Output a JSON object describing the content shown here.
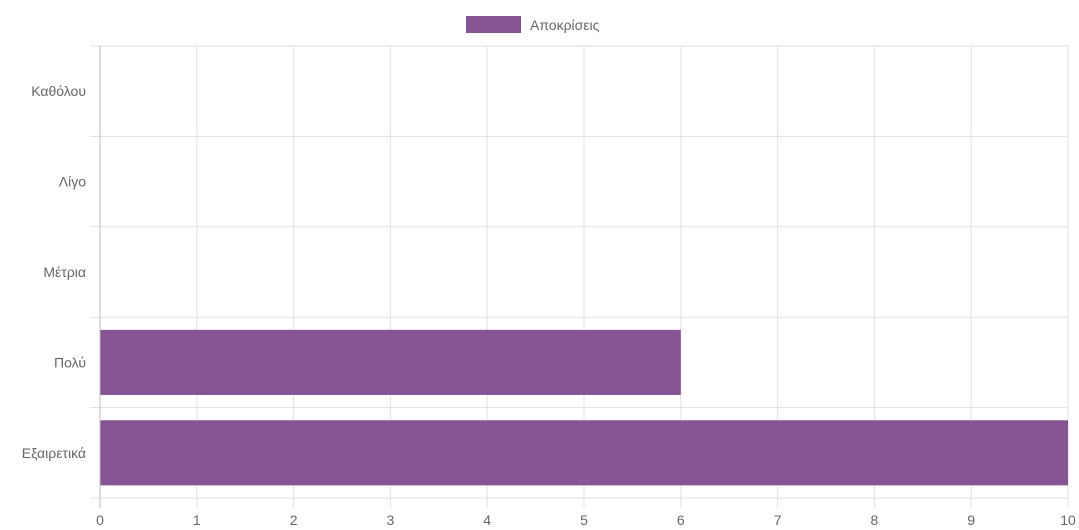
{
  "chart_data": {
    "type": "bar",
    "orientation": "horizontal",
    "categories": [
      "Καθόλου",
      "Λίγο",
      "Μέτρια",
      "Πολύ",
      "Εξαιρετικά"
    ],
    "series": [
      {
        "name": "Αποκρίσεις",
        "values": [
          0,
          0,
          0,
          6,
          10
        ],
        "color": "#865492"
      }
    ],
    "xlim": [
      0,
      10
    ],
    "xticks": [
      "0",
      "1",
      "2",
      "3",
      "4",
      "5",
      "6",
      "7",
      "8",
      "9",
      "10"
    ],
    "grid": true,
    "legend_position": "top-center",
    "gridline_color": "#e1e1e1",
    "text_color": "#666666"
  }
}
